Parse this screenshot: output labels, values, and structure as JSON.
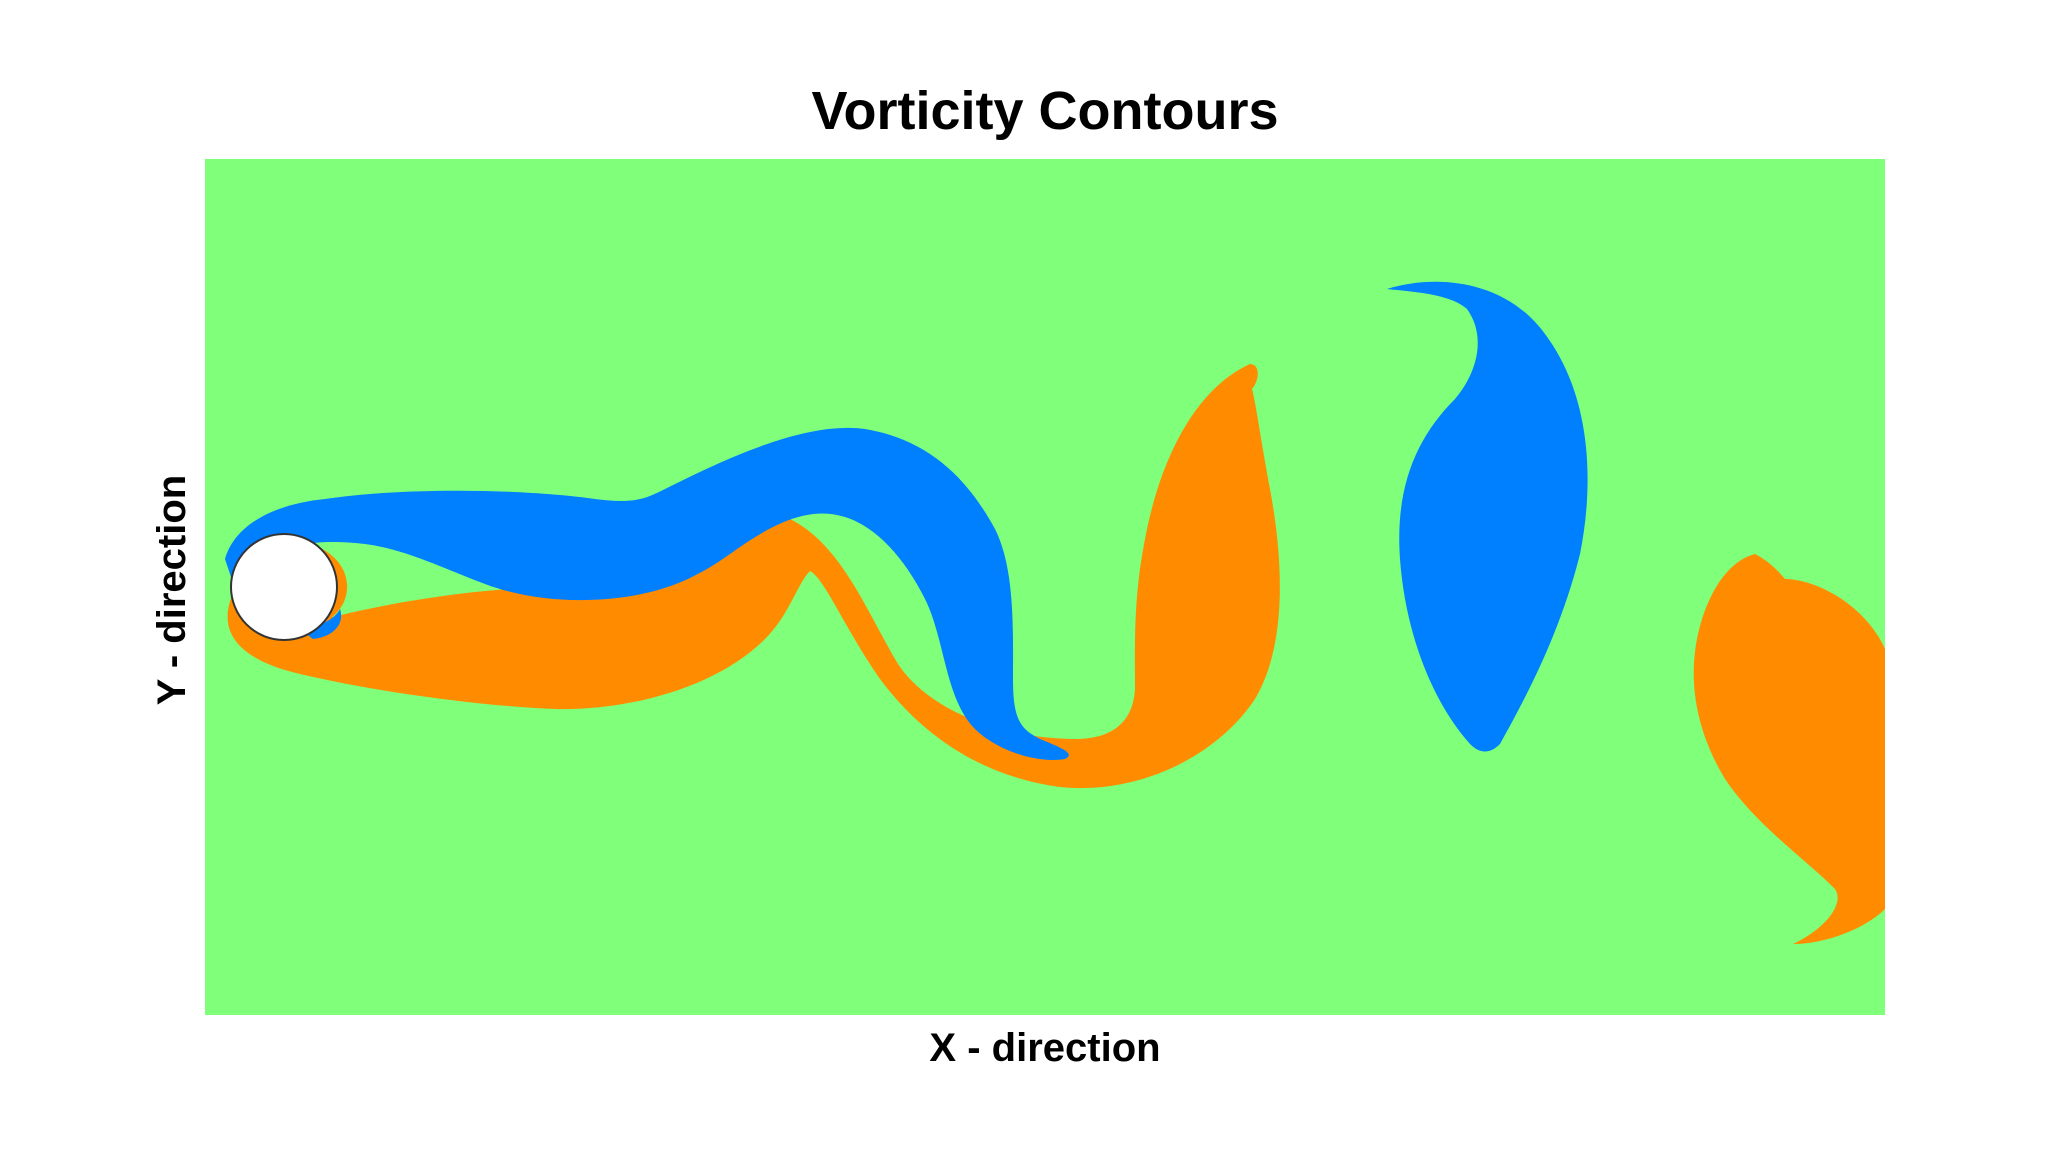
{
  "chart_data": {
    "type": "heatmap",
    "title": "Vorticity Contours",
    "xlabel": "X - direction",
    "ylabel": "Y - direction",
    "grid": false,
    "legend": "none",
    "colors": {
      "background": "#80ff7a",
      "positive_vorticity": "#007fff",
      "negative_vorticity": "#ff8c00",
      "cylinder_fill": "#ffffff",
      "cylinder_edge": "#333333"
    },
    "regions": [
      {
        "id": "upper-shear-layer",
        "sign": "positive"
      },
      {
        "id": "lower-shear-layer",
        "sign": "negative"
      },
      {
        "id": "negative-vortex-1",
        "sign": "negative"
      },
      {
        "id": "positive-vortex-1",
        "sign": "positive"
      },
      {
        "id": "negative-vortex-2",
        "sign": "negative"
      }
    ]
  }
}
